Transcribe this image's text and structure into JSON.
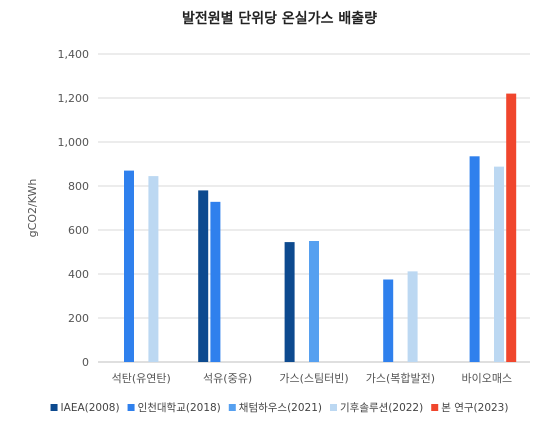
{
  "chart_data": {
    "type": "bar",
    "title": "발전원별 단위당 온실가스 배출량",
    "xlabel": "",
    "ylabel": "gCO2/KWh",
    "ylim": [
      0,
      1400
    ],
    "yticks": [
      0,
      200,
      400,
      600,
      800,
      1000,
      1200,
      1400
    ],
    "ytick_labels": [
      "0",
      "200",
      "400",
      "600",
      "800",
      "1,000",
      "1,200",
      "1,400"
    ],
    "grid": true,
    "legend_position": "bottom",
    "categories": [
      "석탄(유연탄)",
      "석유(중유)",
      "가스(스팀터빈)",
      "가스(복합발전)",
      "바이오매스"
    ],
    "series": [
      {
        "name": "IAEA(2008)",
        "color": "#0d4a8f",
        "values": [
          null,
          780,
          545,
          null,
          null
        ]
      },
      {
        "name": "인천대학교(2018)",
        "color": "#2f80ed",
        "values": [
          870,
          728,
          null,
          375,
          935
        ]
      },
      {
        "name": "채텀하우스(2021)",
        "color": "#56a0f0",
        "values": [
          null,
          null,
          550,
          null,
          null
        ]
      },
      {
        "name": "기후솔루션(2022)",
        "color": "#bcd8f2",
        "values": [
          845,
          null,
          null,
          412,
          888
        ]
      },
      {
        "name": "본 연구(2023)",
        "color": "#f0462d",
        "values": [
          null,
          null,
          null,
          null,
          1220
        ]
      }
    ]
  }
}
